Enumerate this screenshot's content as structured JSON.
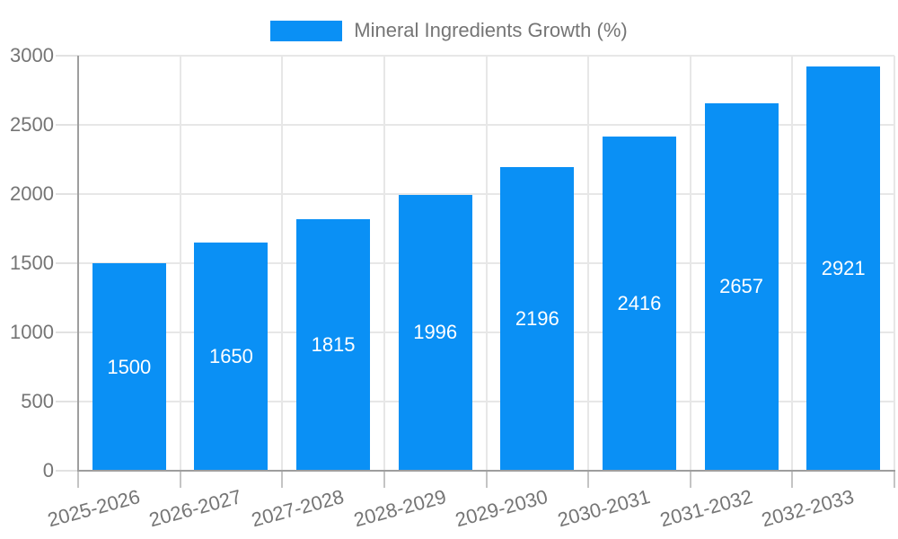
{
  "chart_data": {
    "type": "bar",
    "title": "Mineral Ingredients Growth (%)",
    "legend": {
      "label": "Mineral Ingredients Growth (%)",
      "position": "top"
    },
    "categories": [
      "2025-2026",
      "2026-2027",
      "2027-2028",
      "2028-2029",
      "2029-2030",
      "2030-2031",
      "2031-2032",
      "2032-2033"
    ],
    "values": [
      1500,
      1650,
      1815,
      1996,
      2196,
      2416,
      2657,
      2921
    ],
    "value_labels": [
      "1500",
      "1650",
      "1815",
      "1996",
      "2196",
      "2416",
      "2657",
      "2921"
    ],
    "xlabel": "",
    "ylabel": "",
    "ylim": [
      0,
      3000
    ],
    "yticks": [
      0,
      500,
      1000,
      1500,
      2000,
      2500,
      3000
    ],
    "ytick_labels": [
      "0",
      "500",
      "1000",
      "1500",
      "2000",
      "2500",
      "3000"
    ],
    "grid": true,
    "bar_color": "#0a90f5",
    "value_label_color": "#ffffff",
    "axis_text_color": "#757575"
  }
}
